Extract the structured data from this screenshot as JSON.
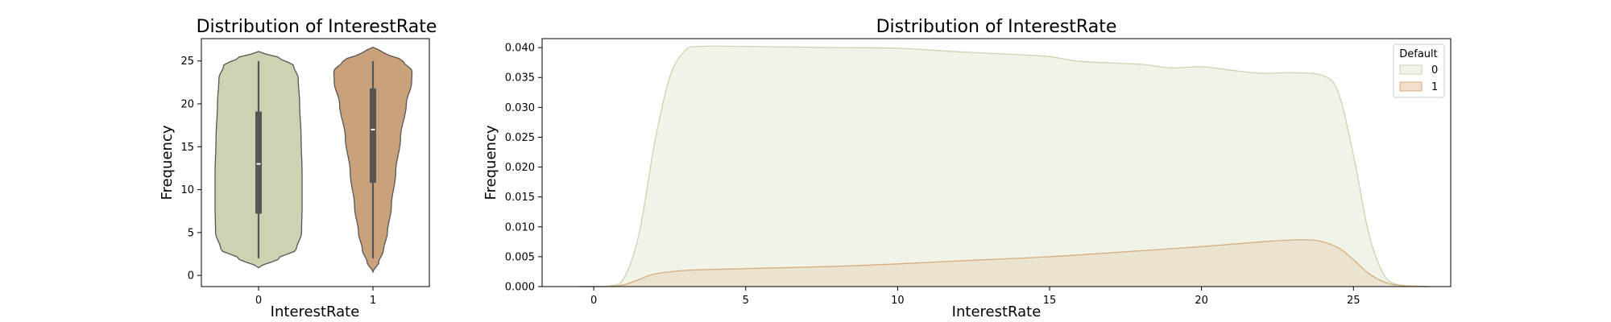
{
  "chart_data": [
    {
      "type": "violin",
      "title": "Distribution of InterestRate",
      "xlabel": "InterestRate",
      "ylabel": "Frequency",
      "categories": [
        "0",
        "1"
      ],
      "ylim": [
        -1.3,
        27.6
      ],
      "yticks": [
        0,
        5,
        10,
        15,
        20,
        25
      ],
      "grid": false,
      "colors": [
        "#cbd3b3",
        "#c9a27c"
      ],
      "violins": [
        {
          "category": "0",
          "color": "#cbd3b3",
          "extent": [
            0.9,
            26.1
          ],
          "whisker": [
            2,
            25
          ],
          "q1": 7.2,
          "median": 13,
          "q3": 19.1,
          "profile": [
            [
              0.9,
              0.0
            ],
            [
              2.0,
              0.42
            ],
            [
              3.0,
              0.78
            ],
            [
              5.0,
              0.89
            ],
            [
              8.0,
              0.9
            ],
            [
              12.0,
              0.9
            ],
            [
              16.0,
              0.88
            ],
            [
              20.0,
              0.85
            ],
            [
              23.0,
              0.82
            ],
            [
              24.5,
              0.72
            ],
            [
              25.3,
              0.45
            ],
            [
              26.1,
              0.0
            ]
          ]
        },
        {
          "category": "1",
          "color": "#c9a27c",
          "extent": [
            0.4,
            26.6
          ],
          "whisker": [
            2,
            25
          ],
          "q1": 10.8,
          "median": 17,
          "q3": 21.8,
          "profile": [
            [
              0.4,
              0.0
            ],
            [
              1.5,
              0.12
            ],
            [
              3.0,
              0.22
            ],
            [
              5.0,
              0.3
            ],
            [
              8.0,
              0.38
            ],
            [
              12.0,
              0.47
            ],
            [
              16.0,
              0.57
            ],
            [
              20.0,
              0.69
            ],
            [
              22.5,
              0.8
            ],
            [
              23.8,
              0.81
            ],
            [
              25.0,
              0.62
            ],
            [
              26.0,
              0.22
            ],
            [
              26.6,
              0.0
            ]
          ]
        }
      ]
    },
    {
      "type": "area",
      "title": "Distribution of InterestRate",
      "xlabel": "InterestRate",
      "ylabel": "Frequency",
      "xlim": [
        -1.7,
        28.2
      ],
      "ylim": [
        0,
        0.0415
      ],
      "xticks": [
        0,
        5,
        10,
        15,
        20,
        25
      ],
      "yticks": [
        0.0,
        0.005,
        0.01,
        0.015,
        0.02,
        0.025,
        0.03,
        0.035,
        0.04
      ],
      "ytick_labels": [
        "0.000",
        "0.005",
        "0.010",
        "0.015",
        "0.020",
        "0.025",
        "0.030",
        "0.035",
        "0.040"
      ],
      "grid": false,
      "legend": {
        "title": "Default",
        "placement": "top-right"
      },
      "series": [
        {
          "name": "0",
          "fill": "#f1f3e8",
          "stroke": "#cdd3b0",
          "points": [
            [
              -0.5,
              0
            ],
            [
              0.5,
              0.0001
            ],
            [
              1.0,
              0.0015
            ],
            [
              1.5,
              0.009
            ],
            [
              2.0,
              0.024
            ],
            [
              2.5,
              0.035
            ],
            [
              3.0,
              0.0395
            ],
            [
              3.5,
              0.0402
            ],
            [
              5.0,
              0.0402
            ],
            [
              8.0,
              0.04
            ],
            [
              10.0,
              0.0399
            ],
            [
              12.0,
              0.0393
            ],
            [
              14.0,
              0.0388
            ],
            [
              15.0,
              0.0385
            ],
            [
              16.0,
              0.0377
            ],
            [
              18.0,
              0.0372
            ],
            [
              19.0,
              0.0366
            ],
            [
              20.0,
              0.0368
            ],
            [
              21.0,
              0.0362
            ],
            [
              22.0,
              0.0357
            ],
            [
              23.0,
              0.0358
            ],
            [
              24.0,
              0.0353
            ],
            [
              24.5,
              0.0325
            ],
            [
              25.0,
              0.022
            ],
            [
              25.5,
              0.009
            ],
            [
              26.0,
              0.002
            ],
            [
              26.5,
              0.0003
            ],
            [
              27.5,
              0
            ]
          ]
        },
        {
          "name": "1",
          "fill": "#e8dfca",
          "stroke": "#d6ad7f",
          "points": [
            [
              -0.5,
              0
            ],
            [
              0.5,
              5e-05
            ],
            [
              1.0,
              0.0003
            ],
            [
              1.5,
              0.0012
            ],
            [
              2.0,
              0.0021
            ],
            [
              3.0,
              0.0027
            ],
            [
              5.0,
              0.003
            ],
            [
              8.0,
              0.0034
            ],
            [
              10.0,
              0.0038
            ],
            [
              12.0,
              0.0043
            ],
            [
              15.0,
              0.005
            ],
            [
              18.0,
              0.006
            ],
            [
              20.0,
              0.0067
            ],
            [
              22.0,
              0.0075
            ],
            [
              23.0,
              0.0078
            ],
            [
              23.8,
              0.0077
            ],
            [
              24.5,
              0.0065
            ],
            [
              25.0,
              0.0045
            ],
            [
              25.5,
              0.0022
            ],
            [
              26.0,
              0.0008
            ],
            [
              26.5,
              0.0002
            ],
            [
              27.5,
              0
            ]
          ]
        }
      ]
    }
  ]
}
